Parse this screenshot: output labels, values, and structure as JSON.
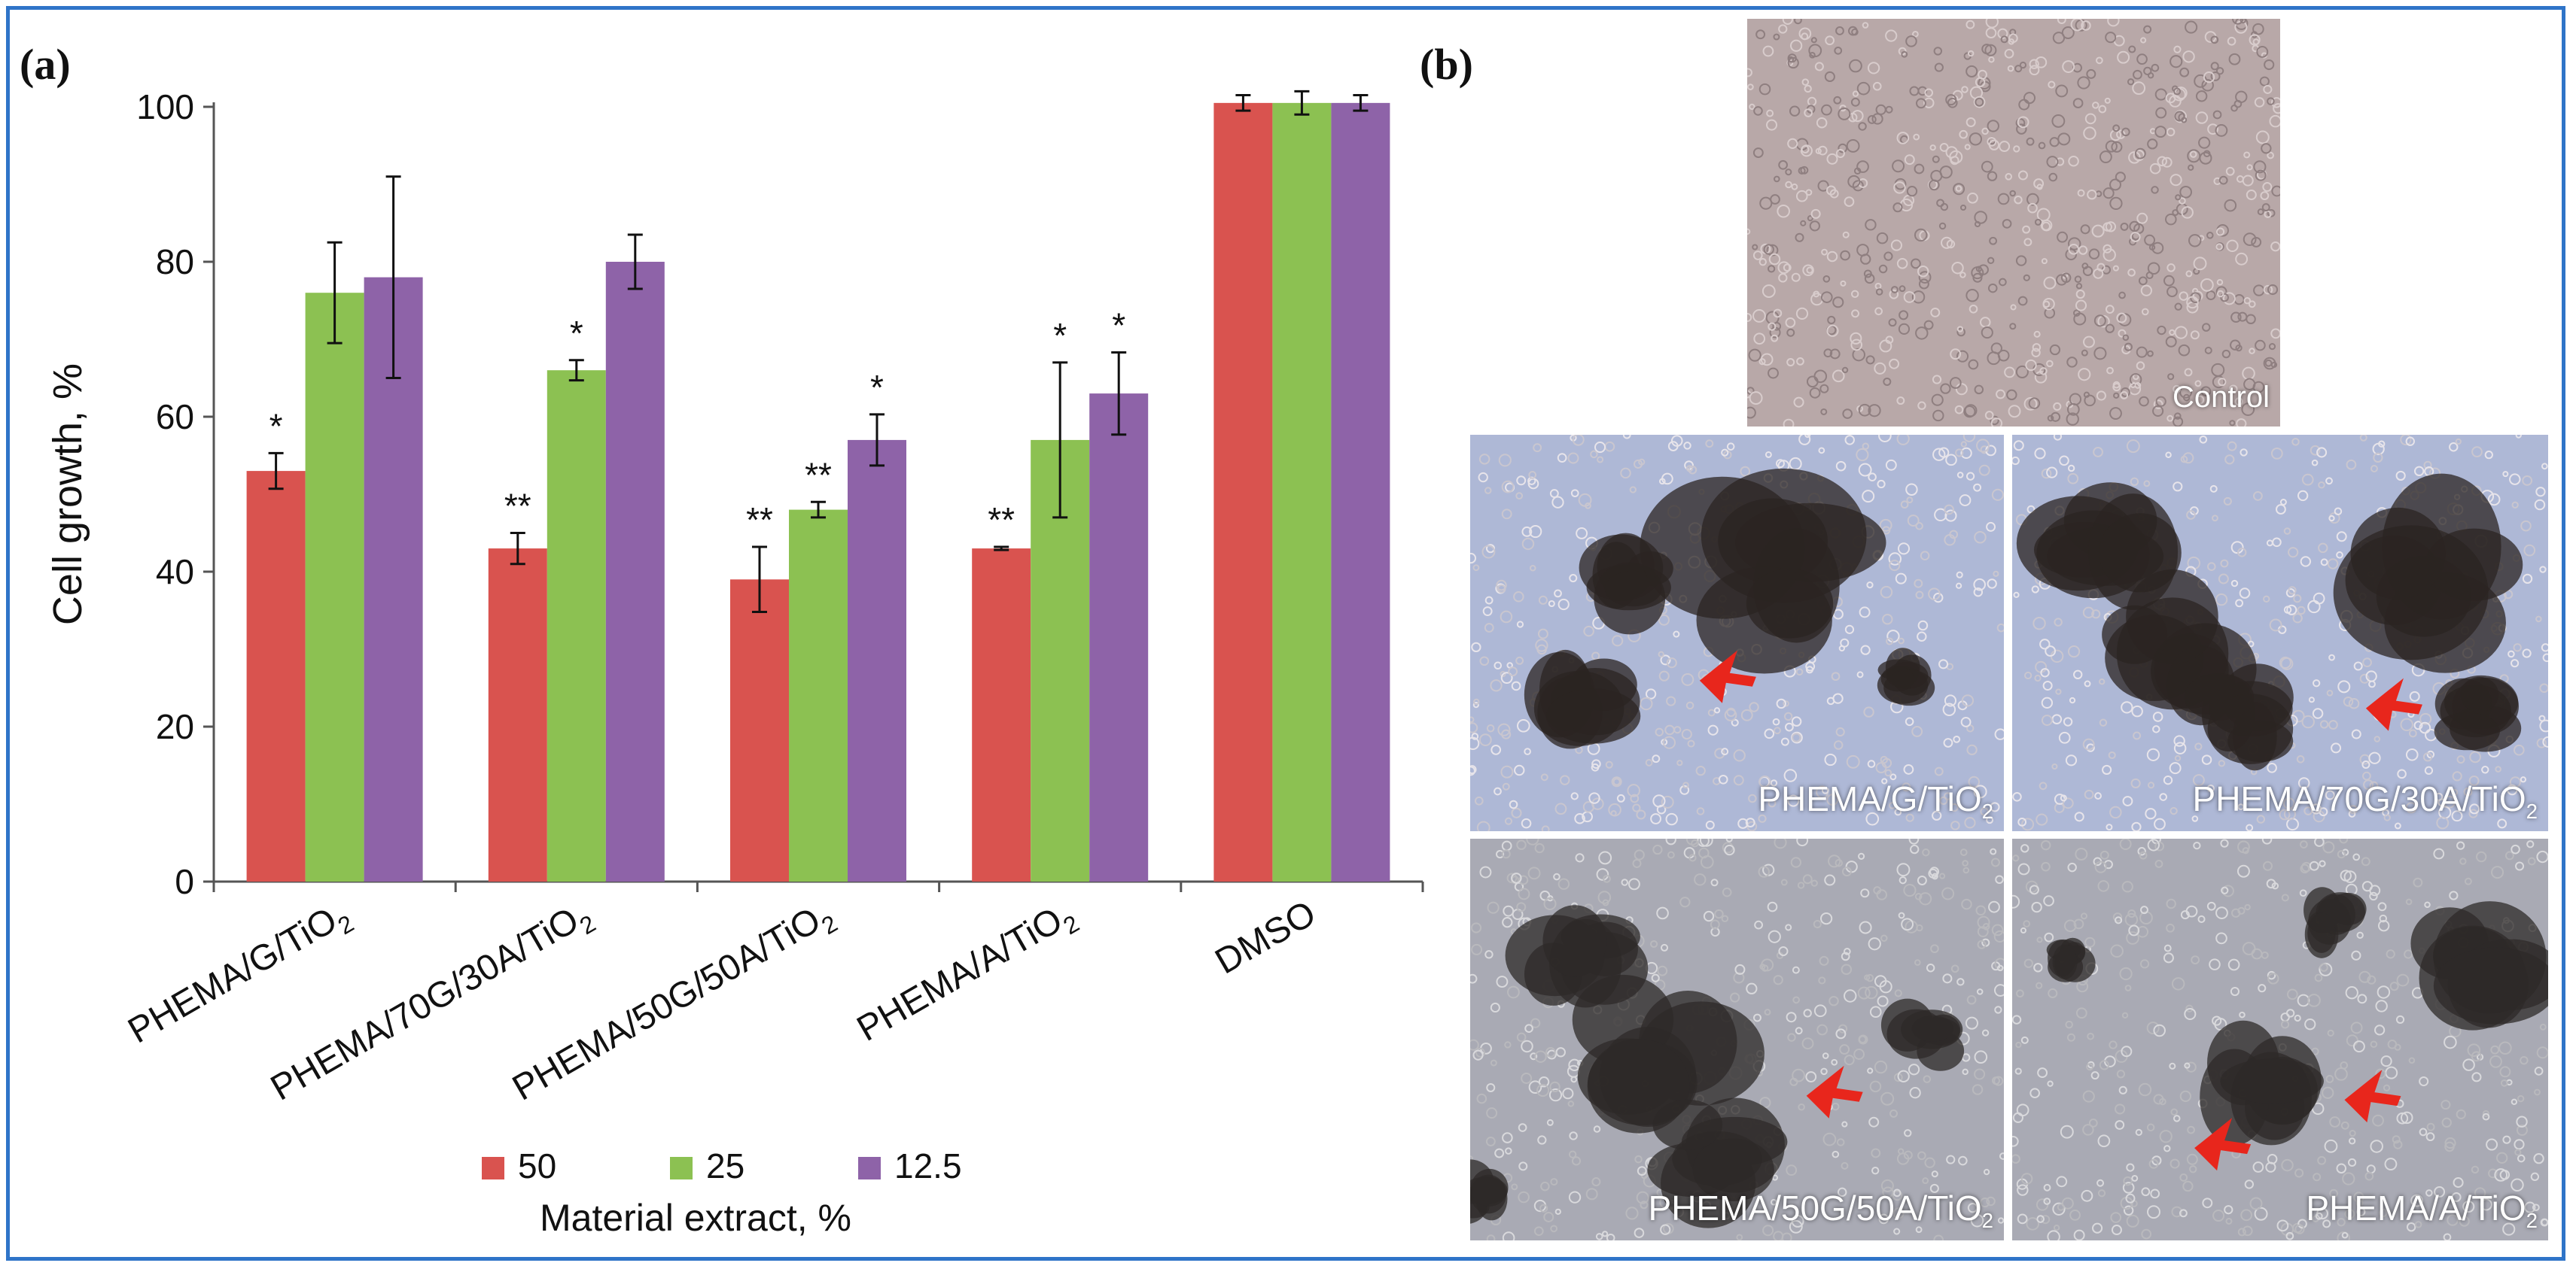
{
  "figure": {
    "panel_a_label": "(a)",
    "panel_b_label": "(b)"
  },
  "colors": {
    "frame": "#2f74c8",
    "series_50": "#d9534f",
    "series_25": "#8cc152",
    "series_12_5": "#8e63a8",
    "arrow": "#e8261c"
  },
  "chart_data": {
    "type": "bar",
    "title": "",
    "ylabel": "Cell growth, %",
    "xlabel": "Material extract, %",
    "ylim": [
      0,
      100
    ],
    "yticks": [
      0,
      20,
      40,
      60,
      80,
      100
    ],
    "categories": [
      {
        "main": "PHEMA/G/TiO",
        "sub": "2"
      },
      {
        "main": "PHEMA/70G/30A/TiO",
        "sub": "2"
      },
      {
        "main": "PHEMA/50G/50A/TiO",
        "sub": "2"
      },
      {
        "main": "PHEMA/A/TiO",
        "sub": "2"
      },
      {
        "main": "DMSO",
        "sub": ""
      }
    ],
    "series": [
      {
        "name": "50",
        "color": "#d9534f",
        "values": [
          53,
          43,
          39,
          43,
          100.5
        ],
        "errors": [
          2.3,
          2.0,
          4.2,
          0.2,
          1.0
        ],
        "annotations": [
          "*",
          "**",
          "**",
          "**",
          ""
        ]
      },
      {
        "name": "25",
        "color": "#8cc152",
        "values": [
          76,
          66,
          48,
          57,
          100.5
        ],
        "errors": [
          6.5,
          1.3,
          1.0,
          10.0,
          1.5
        ],
        "annotations": [
          "",
          "*",
          "**",
          "*",
          ""
        ]
      },
      {
        "name": "12.5",
        "color": "#8e63a8",
        "values": [
          78,
          80,
          57,
          63,
          100.5
        ],
        "errors": [
          13.0,
          3.5,
          3.3,
          5.3,
          1.0
        ],
        "annotations": [
          "",
          "",
          "*",
          "*",
          ""
        ]
      }
    ],
    "legend": {
      "placement": "bottom"
    },
    "grid": false
  },
  "micrographs": [
    {
      "caption_main": "Control",
      "caption_sub": "",
      "tone": "control"
    },
    {
      "caption_main": "PHEMA/G/TiO",
      "caption_sub": "2",
      "tone": "blue"
    },
    {
      "caption_main": "PHEMA/70G/30A/TiO",
      "caption_sub": "2",
      "tone": "blue"
    },
    {
      "caption_main": "PHEMA/50G/50A/TiO",
      "caption_sub": "2",
      "tone": "gray"
    },
    {
      "caption_main": "PHEMA/A/TiO",
      "caption_sub": "2",
      "tone": "gray"
    }
  ]
}
